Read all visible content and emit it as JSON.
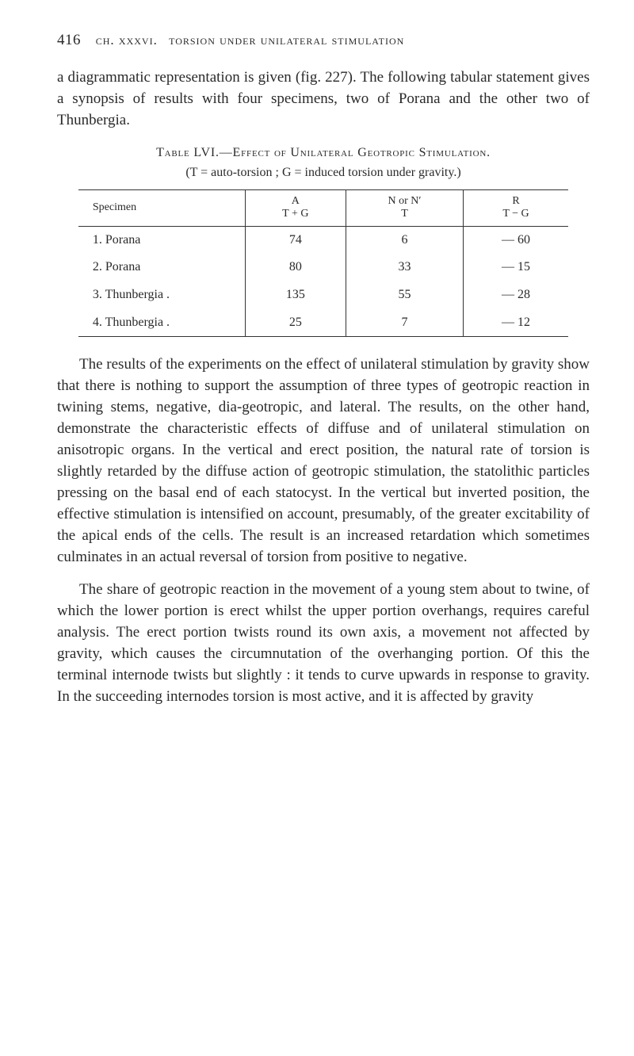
{
  "header": {
    "page_number": "416",
    "chapter_label": "ch. xxxvi.",
    "title": "torsion under unilateral stimulation"
  },
  "para1": "a diagrammatic representation is given (fig. 227). The following tabular statement gives a synopsis of results with four specimens, two of Porana and the other two of Thunbergia.",
  "table_caption": "Table LVI.—Effect of Unilateral Geotropic Stimulation.",
  "table_subcaption": "(T = auto-torsion ;  G = induced torsion under gravity.)",
  "table": {
    "columns": [
      {
        "top": "",
        "bot": "Specimen"
      },
      {
        "top": "A",
        "bot": "T + G"
      },
      {
        "top": "N or N′",
        "bot": "T"
      },
      {
        "top": "R",
        "bot": "T − G"
      }
    ],
    "rows": [
      [
        "1. Porana",
        "74",
        "6",
        "— 60"
      ],
      [
        "2. Porana",
        "80",
        "33",
        "— 15"
      ],
      [
        "3. Thunbergia .",
        "135",
        "55",
        "— 28"
      ],
      [
        "4. Thunbergia .",
        "25",
        "7",
        "— 12"
      ]
    ]
  },
  "para2": "The results of the experiments on the effect of unilateral stimulation by gravity show that there is nothing to support the assumption of three types of geotropic reaction in twining stems, negative, dia-geotropic, and lateral. The results, on the other hand, demonstrate the characteristic effects of diffuse and of unilateral stimulation on anisotropic organs. In the vertical and erect position, the natural rate of torsion is slightly retarded by the diffuse action of geotropic stimulation, the statolithic particles pressing on the basal end of each statocyst. In the vertical but inverted position, the effective stimulation is intensified on account, presumably, of the greater excitability of the apical ends of the cells. The result is an increased retardation which sometimes culminates in an actual reversal of torsion from positive to negative.",
  "para3": "The share of geotropic reaction in the movement of a young stem about to twine, of which the lower portion is erect whilst the upper portion overhangs, requires careful analysis. The erect portion twists round its own axis, a movement not affected by gravity, which causes the circumnutation of the overhanging portion. Of this the terminal internode twists but slightly : it tends to curve upwards in response to gravity. In the succeeding internodes torsion is most active, and it is affected by gravity"
}
